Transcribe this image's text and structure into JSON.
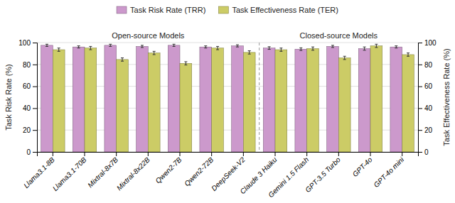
{
  "chart_data": {
    "type": "bar",
    "categories": [
      "Llama3.1-8B",
      "Llama3.1-70B",
      "Mixtral-8x7B",
      "Mixtral-8x22B",
      "Qwen2-7B",
      "Qwen2-72B",
      "DeepSeek-V2",
      "Claude 3 Haiku",
      "Gemini 1.5 Flash",
      "GPT-3.5 Turbo",
      "GPT-4o",
      "GPT-4o mini"
    ],
    "series": [
      {
        "name": "Task Risk Rate (TRR)",
        "color": "#CC99CC",
        "values": [
          97.5,
          96.0,
          97.5,
          96.5,
          97.5,
          96.0,
          97.0,
          95.0,
          94.0,
          96.5,
          94.5,
          96.0
        ],
        "errors": [
          1.0,
          1.0,
          1.0,
          1.0,
          1.0,
          1.0,
          1.0,
          1.2,
          1.2,
          1.0,
          1.5,
          1.0
        ]
      },
      {
        "name": "Task Effectiveness Rate (TER)",
        "color": "#CCCC66",
        "axis": "y2",
        "values": [
          93.5,
          95.0,
          84.5,
          90.5,
          81.0,
          95.0,
          91.0,
          93.5,
          94.5,
          86.0,
          97.0,
          89.0
        ],
        "errors": [
          1.5,
          1.5,
          1.5,
          1.5,
          1.5,
          1.5,
          1.5,
          1.5,
          1.5,
          1.5,
          1.5,
          1.5
        ]
      }
    ],
    "y_label": "Task Risk Rate (%)",
    "y2_label": "Task Effectiveness Rate (%)",
    "ylim": [
      0,
      100
    ],
    "yticks": [
      0,
      20,
      40,
      60,
      80,
      100
    ],
    "y2lim": [
      0,
      100
    ],
    "y2ticks": [
      0,
      20,
      40,
      60,
      80,
      100
    ],
    "annotations": [
      {
        "text": "Open-source Models",
        "from": "Llama3.1-8B",
        "to": "DeepSeek-V2"
      },
      {
        "text": "Closed-source Models",
        "from": "Claude 3 Haiku",
        "to": "GPT-4o mini"
      }
    ],
    "grid": true,
    "legend": "top"
  }
}
